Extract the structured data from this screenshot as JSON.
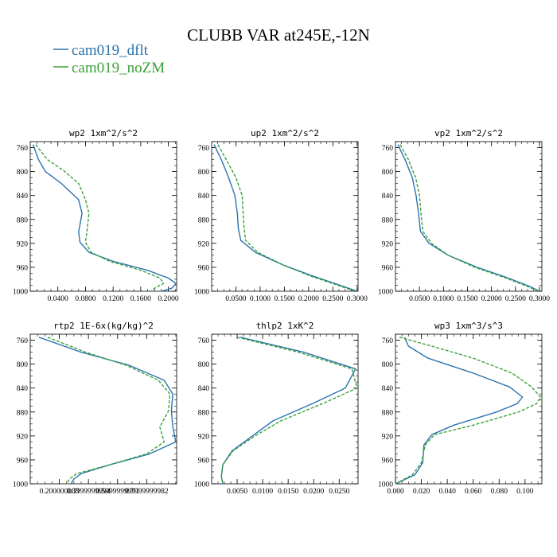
{
  "title": "CLUBB VAR at245E,-12N",
  "legend": [
    {
      "name": "cam019_dflt",
      "color": "#2b73b0",
      "dash": "solid"
    },
    {
      "name": "cam019_noZM",
      "color": "#3aa13a",
      "dash": "dashed"
    }
  ],
  "chart_data": [
    {
      "type": "line",
      "title": "wp2  1xm^2/s^2",
      "xlim": [
        0.0,
        0.212
      ],
      "ylim": [
        1000,
        750
      ],
      "xticks": [
        0.04,
        0.08,
        0.12,
        0.16,
        0.2
      ],
      "xticklabels": [
        "0.0400",
        "0.0800",
        "0.1200",
        "0.1600",
        "0.2000"
      ],
      "yticks": [
        760,
        800,
        840,
        880,
        920,
        960,
        1000
      ],
      "series": [
        {
          "name": "cam019_dflt",
          "x": [
            0.004,
            0.012,
            0.022,
            0.045,
            0.07,
            0.075,
            0.07,
            0.072,
            0.085,
            0.12,
            0.17,
            0.2,
            0.211,
            0.205,
            0.19
          ],
          "y": [
            755,
            780,
            800,
            820,
            847,
            870,
            901,
            918,
            935,
            950,
            965,
            978,
            987,
            995,
            1000
          ]
        },
        {
          "name": "cam019_noZM",
          "x": [
            0.008,
            0.025,
            0.05,
            0.07,
            0.08,
            0.085,
            0.082,
            0.08,
            0.088,
            0.115,
            0.16,
            0.188,
            0.193,
            0.18,
            0.175
          ],
          "y": [
            755,
            780,
            800,
            820,
            847,
            870,
            901,
            918,
            935,
            950,
            965,
            978,
            987,
            995,
            1000
          ]
        }
      ]
    },
    {
      "type": "line",
      "title": "up2  1xm^2/s^2",
      "xlim": [
        0.0,
        0.302
      ],
      "ylim": [
        1000,
        750
      ],
      "xticks": [
        0.05,
        0.1,
        0.15,
        0.2,
        0.25,
        0.3
      ],
      "xticklabels": [
        "0.0500",
        "0.1000",
        "0.1500",
        "0.2000",
        "0.2500",
        "0.3000"
      ],
      "yticks": [
        760,
        800,
        840,
        880,
        920,
        960,
        1000
      ],
      "series": [
        {
          "name": "cam019_dflt",
          "x": [
            0.005,
            0.02,
            0.035,
            0.048,
            0.053,
            0.055,
            0.06,
            0.09,
            0.15,
            0.21,
            0.265,
            0.3
          ],
          "y": [
            755,
            780,
            810,
            840,
            870,
            895,
            915,
            935,
            957,
            975,
            990,
            1000
          ]
        },
        {
          "name": "cam019_noZM",
          "x": [
            0.013,
            0.03,
            0.05,
            0.063,
            0.065,
            0.067,
            0.07,
            0.095,
            0.15,
            0.205,
            0.26,
            0.295
          ],
          "y": [
            755,
            780,
            810,
            840,
            870,
            895,
            915,
            935,
            957,
            975,
            990,
            1000
          ]
        }
      ]
    },
    {
      "type": "line",
      "title": "vp2  1xm^2/s^2",
      "xlim": [
        0.0,
        0.305
      ],
      "ylim": [
        1000,
        750
      ],
      "xticks": [
        0.05,
        0.1,
        0.15,
        0.2,
        0.25,
        0.3
      ],
      "xticklabels": [
        "0.0500",
        "0.1000",
        "0.1500",
        "0.2000",
        "0.2500",
        "0.3000"
      ],
      "yticks": [
        760,
        800,
        840,
        880,
        920,
        960,
        1000
      ],
      "series": [
        {
          "name": "cam019_dflt",
          "x": [
            0.005,
            0.02,
            0.035,
            0.043,
            0.048,
            0.052,
            0.07,
            0.11,
            0.17,
            0.235,
            0.28,
            0.3
          ],
          "y": [
            755,
            780,
            810,
            840,
            870,
            900,
            920,
            940,
            960,
            978,
            992,
            1000
          ]
        },
        {
          "name": "cam019_noZM",
          "x": [
            0.01,
            0.027,
            0.042,
            0.05,
            0.053,
            0.057,
            0.075,
            0.11,
            0.165,
            0.23,
            0.275,
            0.298
          ],
          "y": [
            755,
            780,
            810,
            840,
            870,
            900,
            920,
            940,
            960,
            978,
            992,
            1000
          ]
        }
      ]
    },
    {
      "type": "line",
      "title": "rtp2  1E-6x(kg/kg)^2",
      "xlim": [
        0.0,
        1.006
      ],
      "ylim": [
        1000,
        750
      ],
      "xticks": [
        0.2,
        0.4,
        0.6,
        0.8
      ],
      "xticklabels": [
        "0.200000003",
        "0.3999999994",
        "0.5999999991",
        "0.7999999982"
      ],
      "yticks": [
        760,
        800,
        840,
        880,
        920,
        960,
        1000
      ],
      "series": [
        {
          "name": "cam019_dflt",
          "x": [
            0.06,
            0.35,
            0.68,
            0.92,
            0.98,
            0.97,
            0.98,
            1.0,
            0.82,
            0.55,
            0.35,
            0.3,
            0.28
          ],
          "y": [
            755,
            780,
            802,
            827,
            850,
            878,
            905,
            930,
            950,
            968,
            983,
            992,
            1000
          ]
        },
        {
          "name": "cam019_noZM",
          "x": [
            0.12,
            0.38,
            0.66,
            0.88,
            0.96,
            0.95,
            0.89,
            0.92,
            0.8,
            0.55,
            0.32,
            0.27,
            0.25
          ],
          "y": [
            755,
            780,
            802,
            827,
            850,
            878,
            905,
            930,
            950,
            968,
            983,
            992,
            1000
          ]
        }
      ]
    },
    {
      "type": "line",
      "title": "thlp2  1xK^2",
      "xlim": [
        0.0,
        0.0287
      ],
      "ylim": [
        1000,
        750
      ],
      "xticks": [
        0.005,
        0.01,
        0.015,
        0.02,
        0.025
      ],
      "xticklabels": [
        "0.0050",
        "0.0100",
        "0.0150",
        "0.0200",
        "0.0250"
      ],
      "yticks": [
        760,
        800,
        840,
        880,
        920,
        960,
        1000
      ],
      "series": [
        {
          "name": "cam019_dflt",
          "x": [
            0.0056,
            0.018,
            0.0282,
            0.0262,
            0.02,
            0.012,
            0.008,
            0.004,
            0.0022,
            0.0019,
            0.0022
          ],
          "y": [
            755,
            780,
            808,
            840,
            865,
            895,
            920,
            945,
            968,
            988,
            1000
          ]
        },
        {
          "name": "cam019_noZM",
          "x": [
            0.005,
            0.017,
            0.0275,
            0.0285,
            0.022,
            0.0135,
            0.0085,
            0.0042,
            0.0022,
            0.0019,
            0.0022
          ],
          "y": [
            755,
            780,
            808,
            840,
            865,
            895,
            920,
            945,
            968,
            988,
            1000
          ]
        }
      ]
    },
    {
      "type": "line",
      "title": "wp3  1xm^3/s^3",
      "xlim": [
        0.0,
        0.113
      ],
      "ylim": [
        1000,
        750
      ],
      "xticks": [
        0.0,
        0.02,
        0.04,
        0.06,
        0.08,
        0.1
      ],
      "xticklabels": [
        "0.000",
        "0.020",
        "0.040",
        "0.060",
        "0.080",
        "0.100"
      ],
      "yticks": [
        760,
        800,
        840,
        880,
        920,
        960,
        1000
      ],
      "series": [
        {
          "name": "cam019_dflt",
          "x": [
            0.007,
            0.01,
            0.025,
            0.06,
            0.088,
            0.098,
            0.094,
            0.078,
            0.045,
            0.028,
            0.022,
            0.021,
            0.015,
            0.0
          ],
          "y": [
            755,
            770,
            790,
            815,
            838,
            855,
            866,
            880,
            902,
            918,
            935,
            965,
            985,
            1000
          ]
        },
        {
          "name": "cam019_noZM",
          "x": [
            0.003,
            0.028,
            0.06,
            0.09,
            0.105,
            0.112,
            0.109,
            0.095,
            0.06,
            0.03,
            0.023,
            0.02,
            0.013,
            0.0
          ],
          "y": [
            755,
            770,
            790,
            815,
            838,
            855,
            866,
            880,
            902,
            918,
            935,
            965,
            985,
            1000
          ]
        }
      ]
    }
  ]
}
